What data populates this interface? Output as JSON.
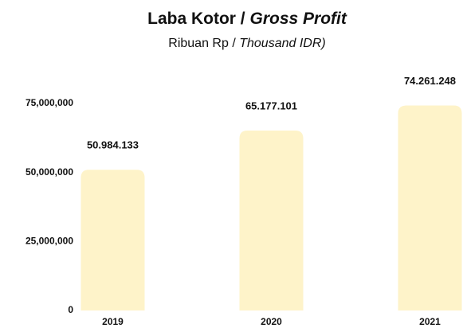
{
  "chart_data": {
    "type": "bar",
    "title": [
      "Laba Kotor /",
      "Gross Profit"
    ],
    "subtitle": [
      "Ribuan Rp /",
      "Thousand IDR)"
    ],
    "categories": [
      "2019",
      "2020",
      "2021"
    ],
    "values": [
      50984133,
      65177101,
      74261248
    ],
    "value_labels": [
      "50.984.133",
      "65.177.101",
      "74.261.248"
    ],
    "color": "#fef3c9",
    "ylim": [
      0,
      75000000
    ],
    "yticks": [
      0,
      {
        "value": 25000000,
        "label": "25,000,000"
      },
      {
        "value": 50000000,
        "label": "50,000,000"
      },
      {
        "value": 75000000,
        "label": "75,000,000"
      }
    ],
    "grid": false
  }
}
